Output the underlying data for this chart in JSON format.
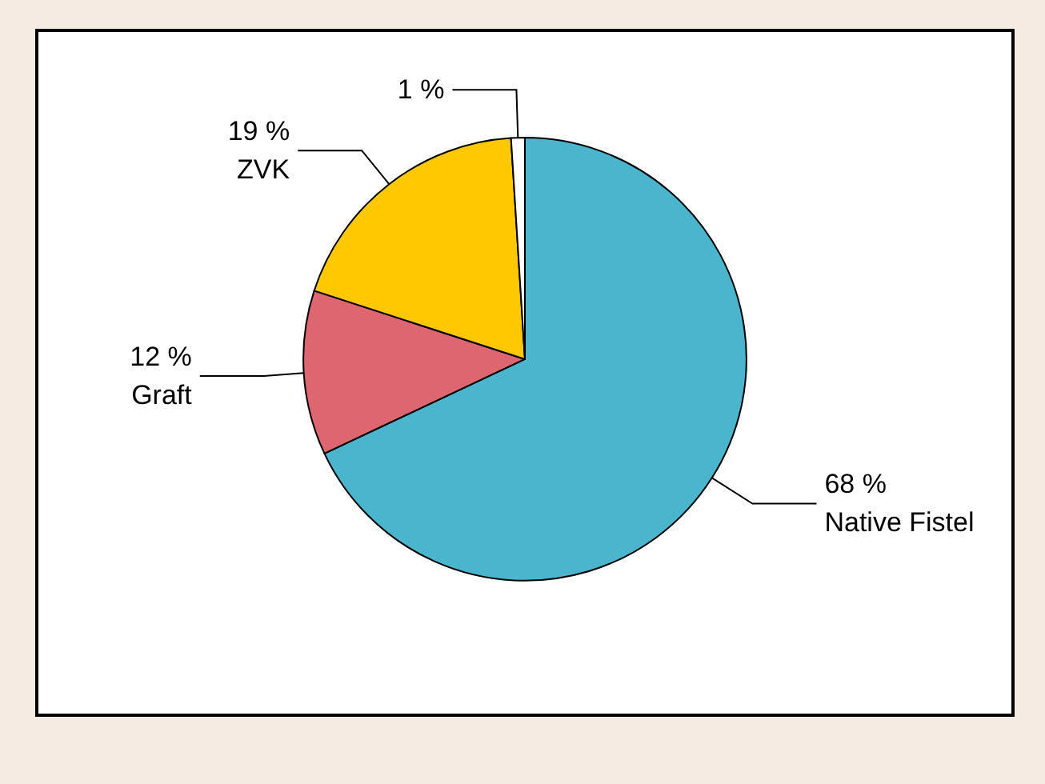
{
  "chart_data": {
    "type": "pie",
    "categories": [
      "Native Fistel",
      "Graft",
      "ZVK",
      null
    ],
    "values": [
      68,
      12,
      19,
      1
    ],
    "colors": [
      "#4ab5cc",
      "#dd6670",
      "#ffc800",
      "#ffffff"
    ],
    "value_labels": [
      "68 %",
      "12 %",
      "19 %",
      "1 %"
    ]
  }
}
